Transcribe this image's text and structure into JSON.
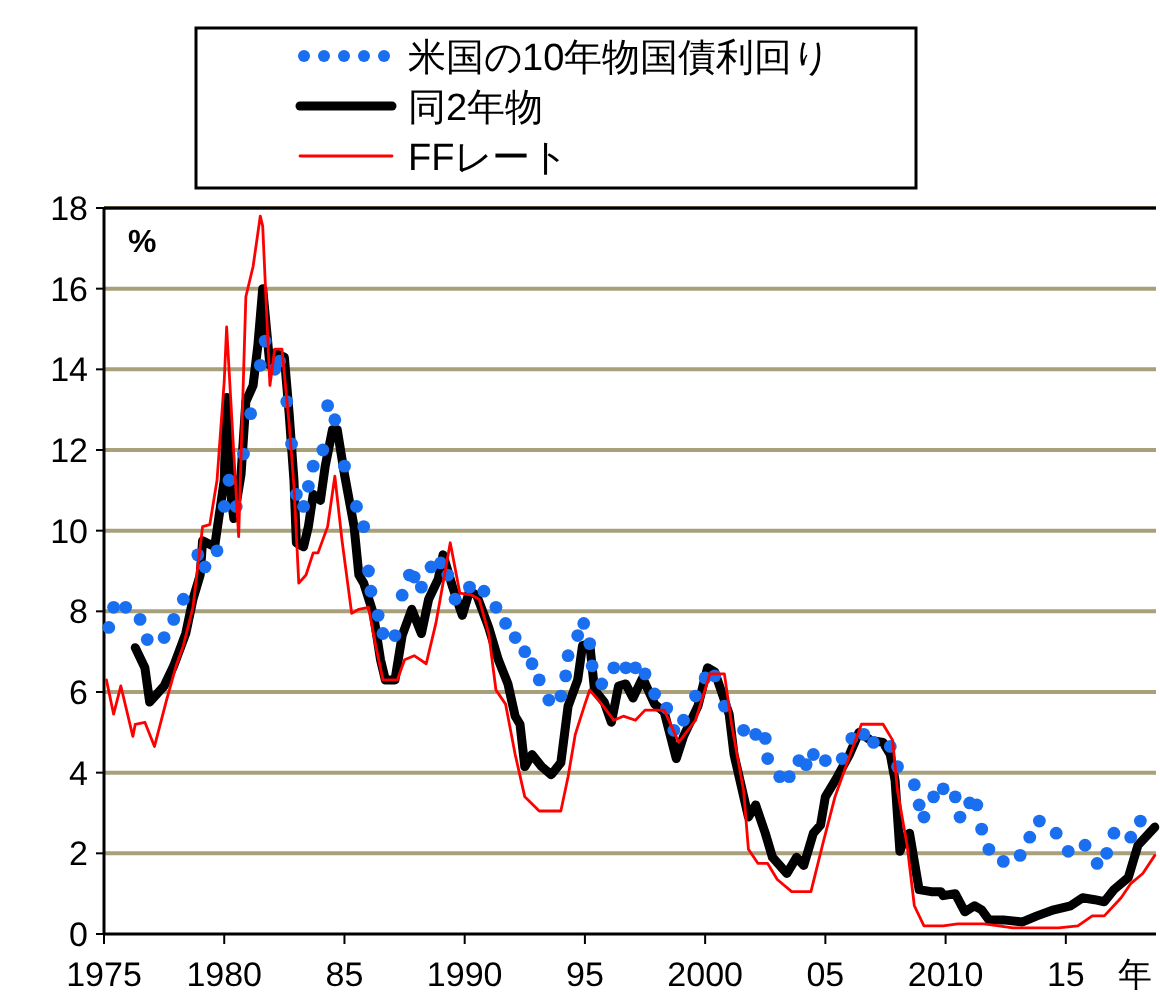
{
  "chart_data": {
    "type": "line",
    "ylabel": "%",
    "xlabel": "年",
    "xlim": [
      1975,
      2018.75
    ],
    "ylim": [
      0,
      18
    ],
    "xticks": [
      1975,
      1980,
      {
        "value": 1985,
        "label": "85"
      },
      1990,
      {
        "value": 1995,
        "label": "95"
      },
      2000,
      {
        "value": 2005,
        "label": "05"
      },
      2010,
      {
        "value": 2015,
        "label": "15"
      }
    ],
    "yticks": [
      0,
      2,
      4,
      6,
      8,
      10,
      12,
      14,
      16,
      18
    ],
    "grid": "y",
    "legend": "top",
    "series": [
      {
        "name": "米国の10年物国債利回り",
        "type": "scatter",
        "marker": "circle",
        "color": "#1a6ff0",
        "x": [
          1975.2,
          1975.4,
          1975.9,
          1976.5,
          1976.8,
          1977.5,
          1977.9,
          1978.3,
          1978.9,
          1979.2,
          1979.7,
          1980,
          1980.2,
          1980.5,
          1980.8,
          1981.1,
          1981.5,
          1981.7,
          1982.1,
          1982.3,
          1982.6,
          1982.8,
          1983,
          1983.3,
          1983.5,
          1983.7,
          1984.1,
          1984.3,
          1984.6,
          1985,
          1985.5,
          1985.8,
          1986,
          1986.1,
          1986.4,
          1986.6,
          1987.1,
          1987.4,
          1987.7,
          1987.9,
          1988.2,
          1988.6,
          1989,
          1989.3,
          1989.6,
          1990.2,
          1990.8,
          1991.3,
          1991.7,
          1992.1,
          1992.5,
          1992.8,
          1993.1,
          1993.5,
          1994,
          1994.2,
          1994.3,
          1994.7,
          1994.95,
          1995.2,
          1995.3,
          1995.7,
          1996.2,
          1996.7,
          1997.1,
          1997.5,
          1997.9,
          1998.4,
          1998.7,
          1999.1,
          1999.6,
          2000,
          2000.4,
          2000.8,
          2001.6,
          2002.1,
          2002.5,
          2002.6,
          2003.1,
          2003.5,
          2003.9,
          2004.2,
          2004.5,
          2005,
          2005.7,
          2006.1,
          2006.6,
          2007,
          2007.7,
          2008,
          2008.7,
          2008.9,
          2009.1,
          2009.5,
          2009.9,
          2010.4,
          2010.6,
          2011,
          2011.3,
          2011.5,
          2011.8,
          2012.4,
          2013.1,
          2013.5,
          2013.9,
          2014.6,
          2015.1,
          2015.8,
          2016.3,
          2016.7,
          2017,
          2017.7,
          2018.1
        ],
        "values": [
          7.6,
          8.1,
          8.1,
          7.8,
          7.3,
          7.35,
          7.8,
          8.3,
          9.4,
          9.1,
          9.5,
          10.6,
          11.25,
          10.6,
          11.9,
          12.9,
          14.1,
          14.7,
          14.0,
          14.2,
          13.2,
          12.15,
          10.9,
          10.6,
          11.1,
          11.6,
          12.0,
          13.1,
          12.75,
          11.6,
          10.6,
          10.1,
          9.0,
          8.5,
          7.9,
          7.45,
          7.4,
          8.4,
          8.9,
          8.85,
          8.6,
          9.1,
          9.2,
          8.9,
          8.3,
          8.6,
          8.5,
          8.1,
          7.7,
          7.35,
          7.0,
          6.7,
          6.3,
          5.8,
          5.9,
          6.4,
          6.9,
          7.4,
          7.7,
          7.2,
          6.65,
          6.2,
          6.6,
          6.6,
          6.6,
          6.45,
          5.95,
          5.6,
          5.05,
          5.3,
          5.9,
          6.35,
          6.4,
          5.65,
          5.05,
          4.95,
          4.85,
          4.35,
          3.9,
          3.9,
          4.3,
          4.2,
          4.45,
          4.3,
          4.35,
          4.85,
          4.95,
          4.75,
          4.65,
          4.15,
          3.7,
          3.2,
          2.9,
          3.4,
          3.6,
          3.4,
          2.9,
          3.25,
          3.2,
          2.6,
          2.1,
          1.8,
          1.95,
          2.4,
          2.8,
          2.5,
          2.05,
          2.2,
          1.75,
          2.0,
          2.5,
          2.4,
          2.8
        ]
      },
      {
        "name": "同2年物",
        "color": "#000000",
        "x": [
          1976.3,
          1976.7,
          1976.9,
          1977.5,
          1977.9,
          1978.4,
          1978.7,
          1979,
          1979.1,
          1979.6,
          1980,
          1980.1,
          1980.3,
          1980.4,
          1980.7,
          1980.9,
          1981.2,
          1981.4,
          1981.6,
          1981.9,
          1982.1,
          1982.5,
          1982.7,
          1982.9,
          1983,
          1983.3,
          1983.5,
          1983.7,
          1984,
          1984.2,
          1984.5,
          1984.7,
          1985,
          1985.4,
          1985.6,
          1985.8,
          1986.2,
          1986.5,
          1986.7,
          1987.1,
          1987.4,
          1987.8,
          1988.2,
          1988.5,
          1988.9,
          1989.1,
          1989.5,
          1989.9,
          1990.2,
          1990.5,
          1991,
          1991.4,
          1991.8,
          1992.1,
          1992.3,
          1992.5,
          1992.8,
          1993.2,
          1993.6,
          1994,
          1994.3,
          1994.7,
          1994.9,
          1995.2,
          1995.4,
          1995.8,
          1996.1,
          1996.4,
          1996.7,
          1997,
          1997.4,
          1997.9,
          1998.3,
          1998.8,
          1999.1,
          1999.7,
          2000.1,
          2000.4,
          2001,
          2001.2,
          2001.8,
          2002.1,
          2002.5,
          2002.8,
          2003.4,
          2003.8,
          2004.1,
          2004.5,
          2004.8,
          2005,
          2005.5,
          2006,
          2006.4,
          2006.9,
          2007.4,
          2007.7,
          2007.9,
          2008.1,
          2008.3,
          2008.5,
          2008.9,
          2009.4,
          2009.8,
          2009.9,
          2010.4,
          2010.8,
          2011.2,
          2011.5,
          2011.8,
          2012.4,
          2013.2,
          2013.8,
          2014.5,
          2015.2,
          2015.7,
          2016.2,
          2016.6,
          2017,
          2017.6,
          2018,
          2018.7
        ],
        "values": [
          7.1,
          6.6,
          5.75,
          6.15,
          6.65,
          7.45,
          8.3,
          8.9,
          9.75,
          9.6,
          11.25,
          13.3,
          10.75,
          10.3,
          11.4,
          13.2,
          13.6,
          14.6,
          16.0,
          14.1,
          14.4,
          14.3,
          12.9,
          11.25,
          9.7,
          9.6,
          10.1,
          10.9,
          10.75,
          11.6,
          12.5,
          12.5,
          11.4,
          10.1,
          8.9,
          8.7,
          7.95,
          6.8,
          6.3,
          6.3,
          7.4,
          8.05,
          7.45,
          8.3,
          8.8,
          9.4,
          8.6,
          7.9,
          8.5,
          8.4,
          7.6,
          6.8,
          6.2,
          5.4,
          5.2,
          4.15,
          4.45,
          4.15,
          3.95,
          4.25,
          5.65,
          6.3,
          7.15,
          7.2,
          6.05,
          5.75,
          5.25,
          6.15,
          6.2,
          5.85,
          6.35,
          5.7,
          5.5,
          4.35,
          4.9,
          5.65,
          6.6,
          6.5,
          5.45,
          4.45,
          2.9,
          3.2,
          2.5,
          1.9,
          1.5,
          1.9,
          1.7,
          2.5,
          2.7,
          3.4,
          3.9,
          4.45,
          5.0,
          4.8,
          4.75,
          4.45,
          3.8,
          2.05,
          2.4,
          2.5,
          1.1,
          1.05,
          1.05,
          0.95,
          1.0,
          0.55,
          0.7,
          0.6,
          0.35,
          0.35,
          0.3,
          0.45,
          0.6,
          0.7,
          0.9,
          0.85,
          0.8,
          1.1,
          1.4,
          2.2,
          2.65
        ]
      },
      {
        "name": "FFレート",
        "color": "#ff0000",
        "x": [
          1975.1,
          1975.4,
          1975.7,
          1976.2,
          1976.3,
          1976.7,
          1977.1,
          1977.6,
          1978,
          1978.3,
          1978.7,
          1979.1,
          1979.4,
          1979.7,
          1980,
          1980.1,
          1980.4,
          1980.6,
          1980.9,
          1981.2,
          1981.5,
          1981.6,
          1981.9,
          1982.1,
          1982.4,
          1982.7,
          1982.9,
          1983.1,
          1983.4,
          1983.7,
          1983.9,
          1984.3,
          1984.6,
          1984.9,
          1985.3,
          1985.6,
          1986,
          1986.3,
          1986.6,
          1987.2,
          1987.5,
          1987.9,
          1988.4,
          1988.8,
          1989.4,
          1989.8,
          1990.3,
          1990.6,
          1991,
          1991.3,
          1991.7,
          1992.1,
          1992.5,
          1993.1,
          1993.6,
          1994,
          1994.3,
          1994.6,
          1995,
          1995.2,
          1995.7,
          1996.2,
          1996.6,
          1997.1,
          1997.5,
          1998.3,
          1998.9,
          1999.6,
          2000.2,
          2000.8,
          2001.1,
          2001.6,
          2001.8,
          2002.2,
          2002.6,
          2003,
          2003.6,
          2004.4,
          2004.9,
          2005.4,
          2006,
          2006.5,
          2007.4,
          2007.8,
          2008,
          2008.4,
          2008.7,
          2009.1,
          2009.9,
          2010.5,
          2011.6,
          2012.8,
          2014.7,
          2015.5,
          2016.1,
          2016.6,
          2017.3,
          2017.7,
          2018.2,
          2018.7
        ],
        "values": [
          6.3,
          5.45,
          6.15,
          4.9,
          5.2,
          5.25,
          4.65,
          5.8,
          6.65,
          7.15,
          8.1,
          10.1,
          10.15,
          11.25,
          13.7,
          15.05,
          11.9,
          9.85,
          15.8,
          16.55,
          17.8,
          17.55,
          13.6,
          14.5,
          14.5,
          12.65,
          11.1,
          8.7,
          8.9,
          9.45,
          9.45,
          10.1,
          11.35,
          9.75,
          7.95,
          8.05,
          8.1,
          7.15,
          6.3,
          6.3,
          6.8,
          6.9,
          6.7,
          7.7,
          9.7,
          8.45,
          8.4,
          8.3,
          7.45,
          6.05,
          5.7,
          4.45,
          3.4,
          3.05,
          3.05,
          3.05,
          3.9,
          4.95,
          5.7,
          6.05,
          5.7,
          5.3,
          5.4,
          5.3,
          5.55,
          5.55,
          4.75,
          5.3,
          6.45,
          6.45,
          5.2,
          3.55,
          2.1,
          1.75,
          1.75,
          1.35,
          1.05,
          1.05,
          2.25,
          3.4,
          4.4,
          5.2,
          5.2,
          4.8,
          3.55,
          2.2,
          0.7,
          0.2,
          0.2,
          0.25,
          0.25,
          0.15,
          0.15,
          0.2,
          0.45,
          0.45,
          0.9,
          1.25,
          1.5,
          1.95
        ]
      }
    ]
  }
}
